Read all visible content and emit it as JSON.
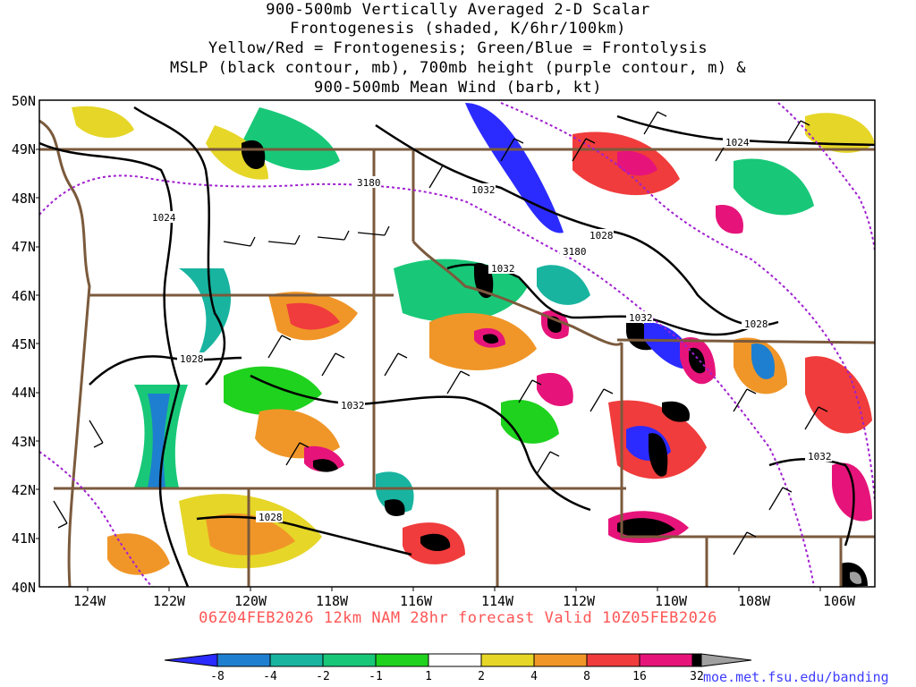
{
  "title": {
    "lines": [
      "900-500mb Vertically Averaged 2-D Scalar",
      "Frontogenesis (shaded, K/6hr/100km)",
      "Yellow/Red = Frontogenesis;  Green/Blue = Frontolysis",
      "MSLP (black contour, mb), 700mb height (purple contour, m) &",
      "900-500mb Mean Wind (barb, kt)"
    ]
  },
  "map": {
    "lat_labels": [
      "50N",
      "49N",
      "48N",
      "47N",
      "46N",
      "45N",
      "44N",
      "43N",
      "42N",
      "41N",
      "40N"
    ],
    "lon_labels": [
      "124W",
      "122W",
      "120W",
      "118W",
      "116W",
      "114W",
      "112W",
      "110W",
      "108W",
      "106W"
    ],
    "contour_labels": [
      {
        "id": "mslp-1024-nw",
        "text": "1024"
      },
      {
        "id": "mslp-1024-ne",
        "text": "1024"
      },
      {
        "id": "mslp-1032-n",
        "text": "1032"
      },
      {
        "id": "mslp-1028-n",
        "text": "1028"
      },
      {
        "id": "mslp-1032-c",
        "text": "1032"
      },
      {
        "id": "mslp-1032-e",
        "text": "1032"
      },
      {
        "id": "mslp-1028-e",
        "text": "1028"
      },
      {
        "id": "mslp-1028-w",
        "text": "1028"
      },
      {
        "id": "mslp-1032-sw",
        "text": "1032"
      },
      {
        "id": "mslp-1028-sw",
        "text": "1028"
      },
      {
        "id": "mslp-1032-se",
        "text": "1032"
      },
      {
        "id": "hgt-3180-n",
        "text": "3180"
      },
      {
        "id": "hgt-3180-c",
        "text": "3180"
      }
    ]
  },
  "valid_time": "06Z04FEB2026 12km NAM 28hr forecast Valid 10Z05FEB2026",
  "colorbar": {
    "labels": [
      "-8",
      "-4",
      "-2",
      "-1",
      "1",
      "2",
      "4",
      "8",
      "16",
      "32"
    ],
    "colors": [
      "#2b2bff",
      "#1e7fd0",
      "#18b4a0",
      "#18c878",
      "#1ed21e",
      "#ffffff",
      "#e6d628",
      "#f09628",
      "#f03c3c",
      "#e6147a",
      "#000000",
      "#a0a0a0"
    ]
  },
  "credit": "moe.met.fsu.edu/banding"
}
